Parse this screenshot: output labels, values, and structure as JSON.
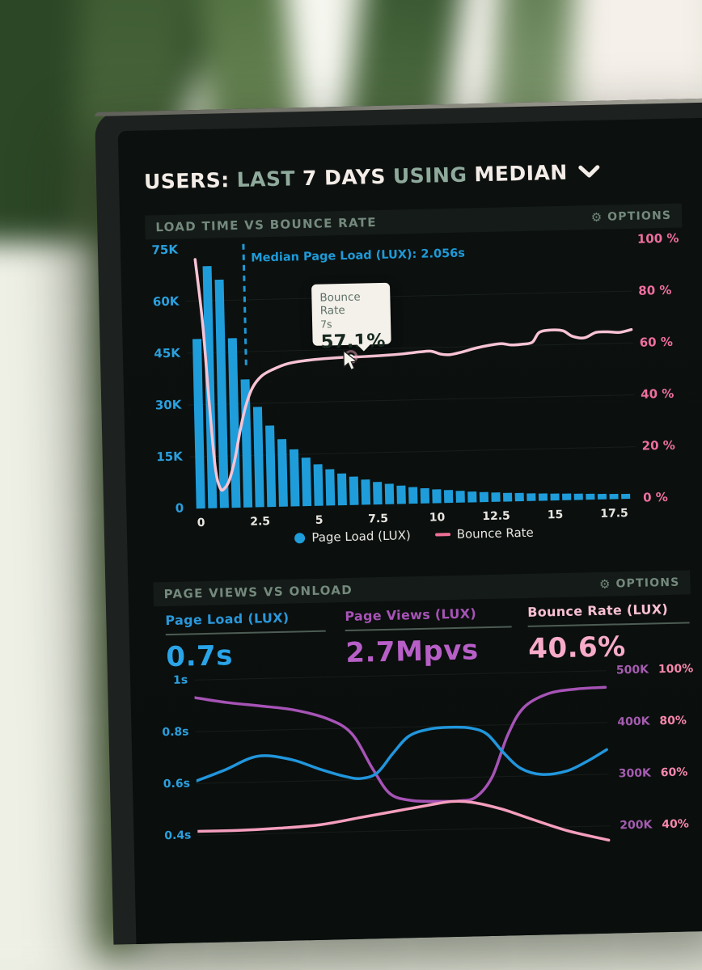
{
  "header": {
    "seg1": "USERS:",
    "seg2": "LAST",
    "seg3": "7 DAYS",
    "seg4": "USING",
    "seg5": "MEDIAN"
  },
  "panel1": {
    "title": "LOAD TIME VS BOUNCE RATE",
    "options_label": "OPTIONS",
    "gear": "⚙"
  },
  "panel2": {
    "title": "PAGE VIEWS VS ONLOAD",
    "options_label": "OPTIONS",
    "gear": "⚙"
  },
  "tooltip": {
    "series": "Bounce Rate",
    "x_value": "7s",
    "value": "57.1%"
  },
  "metrics": {
    "m1": {
      "label": "Page Load (LUX)",
      "value": "0.7s"
    },
    "m2": {
      "label": "Page Views (LUX)",
      "value": "2.7Mpvs"
    },
    "m3": {
      "label": "Bounce Rate (LUX)",
      "value": "40.6%"
    }
  },
  "colors": {
    "bar_blue": "#1f9dda",
    "line_pink_light": "#f8c3d4",
    "median_blue": "#1e9ad8",
    "purple": "#a653b6",
    "blue_line": "#2196dd",
    "pink_line": "#f59ebe",
    "grid": "rgba(150,180,168,0.09)",
    "axis_pink": "#ef6f9f",
    "axis_blue": "#2aa0df"
  },
  "chart_data": [
    {
      "type": "bar",
      "title": "Load Time vs Bounce Rate",
      "x_ticks": [
        0,
        2.5,
        5,
        7.5,
        10,
        12.5,
        15,
        17.5
      ],
      "y_left": {
        "labels": [
          "75K",
          "60K",
          "45K",
          "30K",
          "15K",
          "0"
        ],
        "values": [
          75,
          60,
          45,
          30,
          15,
          0
        ],
        "unit": "K users"
      },
      "y_right": {
        "labels": [
          "100 %",
          "80 %",
          "60 %",
          "40 %",
          "20 %",
          "0 %"
        ],
        "values": [
          100,
          80,
          60,
          40,
          20,
          0
        ],
        "unit": "percent"
      },
      "bars": {
        "name": "Page Load (LUX)",
        "x_start": 0,
        "x_step": 0.5,
        "values_k": [
          49,
          70,
          66,
          49,
          37,
          29,
          23.5,
          19.5,
          16.5,
          14,
          12,
          10.5,
          9.2,
          8.2,
          7.3,
          6.5,
          5.9,
          5.3,
          4.8,
          4.4,
          4.0,
          3.7,
          3.4,
          3.1,
          2.9,
          2.7,
          2.5,
          2.4,
          2.2,
          2.1,
          2.0,
          1.9,
          1.8,
          1.7,
          1.6,
          1.5,
          1.45
        ]
      },
      "line": {
        "name": "Bounce Rate",
        "points": [
          [
            0,
            96
          ],
          [
            0.25,
            72
          ],
          [
            0.45,
            42
          ],
          [
            0.65,
            16
          ],
          [
            0.85,
            7.5
          ],
          [
            1.05,
            7.8
          ],
          [
            1.25,
            11
          ],
          [
            1.5,
            19
          ],
          [
            1.75,
            30
          ],
          [
            2.0,
            39
          ],
          [
            2.3,
            46
          ],
          [
            2.7,
            50.5
          ],
          [
            3.2,
            53
          ],
          [
            3.8,
            55
          ],
          [
            4.5,
            56
          ],
          [
            5.3,
            56.6
          ],
          [
            6.2,
            57
          ],
          [
            7,
            57.1
          ],
          [
            7.9,
            57.4
          ],
          [
            8.7,
            57.8
          ],
          [
            9.4,
            58.4
          ],
          [
            9.9,
            58.6
          ],
          [
            10.3,
            57.4
          ],
          [
            10.7,
            57.1
          ],
          [
            11.2,
            58
          ],
          [
            11.8,
            59.4
          ],
          [
            12.4,
            60.4
          ],
          [
            12.9,
            60.9
          ],
          [
            13.3,
            60.3
          ],
          [
            13.8,
            60.5
          ],
          [
            14.2,
            61.2
          ],
          [
            14.5,
            64.9
          ],
          [
            15.0,
            65.7
          ],
          [
            15.5,
            65.3
          ],
          [
            15.9,
            63.1
          ],
          [
            16.4,
            62.4
          ],
          [
            16.9,
            64.4
          ],
          [
            17.4,
            64.5
          ],
          [
            17.9,
            64.2
          ],
          [
            18.4,
            65.2
          ]
        ]
      },
      "median": {
        "x": 2.056,
        "label": "Median Page Load (LUX): 2.056s"
      },
      "hover_point": {
        "x": 6.5,
        "pct": 57.1
      }
    },
    {
      "type": "line",
      "title": "Page Views vs OnLoad",
      "axes": {
        "seconds": {
          "labels": [
            "1s",
            "0.8s",
            "0.6s",
            "0.4s"
          ],
          "values": [
            1.0,
            0.8,
            0.6,
            0.4
          ]
        },
        "thousands": {
          "labels": [
            "500K",
            "400K",
            "300K",
            "200K"
          ],
          "values": [
            500,
            400,
            300,
            200
          ]
        },
        "percent": {
          "labels": [
            "100%",
            "80%",
            "60%",
            "40%"
          ],
          "values": [
            100,
            80,
            60,
            40
          ]
        }
      },
      "series": [
        {
          "name": "Page Views",
          "axis": "thousands",
          "color_key": "purple",
          "points": [
            [
              0,
              466
            ],
            [
              0.08,
              455
            ],
            [
              0.16,
              447
            ],
            [
              0.24,
              438
            ],
            [
              0.32,
              420
            ],
            [
              0.38,
              390
            ],
            [
              0.43,
              320
            ],
            [
              0.47,
              272
            ],
            [
              0.52,
              258
            ],
            [
              0.58,
              255
            ],
            [
              0.64,
              255
            ],
            [
              0.68,
              262
            ],
            [
              0.72,
              300
            ],
            [
              0.76,
              380
            ],
            [
              0.8,
              432
            ],
            [
              0.86,
              458
            ],
            [
              0.93,
              466
            ],
            [
              1,
              468
            ]
          ]
        },
        {
          "name": "Page Load",
          "axis": "seconds",
          "color_key": "blue_line",
          "points": [
            [
              0,
              0.61
            ],
            [
              0.07,
              0.65
            ],
            [
              0.15,
              0.7
            ],
            [
              0.23,
              0.685
            ],
            [
              0.3,
              0.645
            ],
            [
              0.36,
              0.615
            ],
            [
              0.4,
              0.605
            ],
            [
              0.44,
              0.625
            ],
            [
              0.48,
              0.7
            ],
            [
              0.52,
              0.765
            ],
            [
              0.57,
              0.79
            ],
            [
              0.62,
              0.795
            ],
            [
              0.67,
              0.79
            ],
            [
              0.71,
              0.765
            ],
            [
              0.75,
              0.69
            ],
            [
              0.79,
              0.63
            ],
            [
              0.84,
              0.605
            ],
            [
              0.9,
              0.615
            ],
            [
              0.95,
              0.65
            ],
            [
              1,
              0.695
            ]
          ]
        },
        {
          "name": "Bounce Rate",
          "axis": "percent",
          "color_key": "pink_line",
          "points": [
            [
              0,
              41.5
            ],
            [
              0.1,
              41.5
            ],
            [
              0.2,
              42
            ],
            [
              0.3,
              43
            ],
            [
              0.4,
              45.5
            ],
            [
              0.48,
              47.5
            ],
            [
              0.56,
              49.5
            ],
            [
              0.62,
              50.8
            ],
            [
              0.67,
              50.3
            ],
            [
              0.74,
              47.5
            ],
            [
              0.81,
              43.5
            ],
            [
              0.9,
              38.5
            ],
            [
              1,
              34.5
            ]
          ]
        }
      ]
    }
  ]
}
